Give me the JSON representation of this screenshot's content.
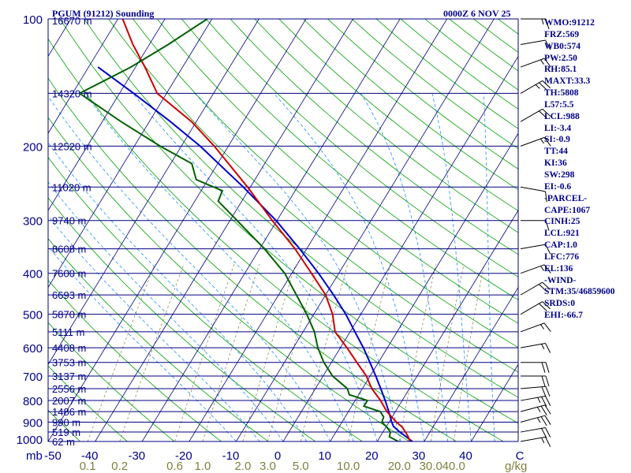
{
  "header": {
    "station": "PGUM (91212) Sounding",
    "datetime": "0000Z  6 NOV 25"
  },
  "chart_data": {
    "type": "skew-t",
    "pressure_axis": {
      "label": "mb",
      "ticks": [
        100,
        200,
        300,
        400,
        500,
        600,
        700,
        800,
        900,
        1000
      ],
      "range": [
        1000,
        100
      ],
      "scale": "log"
    },
    "temperature_axis": {
      "label": "C",
      "ticks": [
        -50,
        -40,
        -30,
        -20,
        -10,
        0,
        10,
        20,
        30,
        40
      ],
      "range": [
        -50,
        50
      ]
    },
    "mixing_ratio_axis": {
      "label": "g/kg",
      "ticks": [
        "0.1",
        "0.2",
        "0.6",
        "1.0",
        "2.0",
        "3.0",
        "5.0",
        "10.0",
        "20.0",
        "30.0",
        "40.0"
      ],
      "values": [
        0.1,
        0.2,
        0.6,
        1.0,
        2.0,
        3.0,
        5.0,
        10.0,
        20.0,
        30.0,
        40.0
      ]
    },
    "heights": [
      {
        "p": 100,
        "label": "16670 m"
      },
      {
        "p": 150,
        "label": "14320 m"
      },
      {
        "p": 200,
        "label": "12520 m"
      },
      {
        "p": 250,
        "label": "11020 m"
      },
      {
        "p": 300,
        "label": "9740 m"
      },
      {
        "p": 350,
        "label": "8608 m"
      },
      {
        "p": 400,
        "label": "7600 m"
      },
      {
        "p": 450,
        "label": "6693 m"
      },
      {
        "p": 500,
        "label": "5870 m"
      },
      {
        "p": 550,
        "label": "5111 m"
      },
      {
        "p": 600,
        "label": "4408 m"
      },
      {
        "p": 650,
        "label": "3753 m"
      },
      {
        "p": 700,
        "label": "3137 m"
      },
      {
        "p": 750,
        "label": "2556 m"
      },
      {
        "p": 800,
        "label": "2007 m"
      },
      {
        "p": 850,
        "label": "1486 m"
      },
      {
        "p": 900,
        "label": "990 m"
      },
      {
        "p": 950,
        "label": "519 m"
      },
      {
        "p": 1000,
        "label": "62 m"
      }
    ],
    "temperature": [
      {
        "p": 1000,
        "t": 27.0
      },
      {
        "p": 975,
        "t": 26.0
      },
      {
        "p": 950,
        "t": 24.8
      },
      {
        "p": 925,
        "t": 23.5
      },
      {
        "p": 900,
        "t": 21.6
      },
      {
        "p": 850,
        "t": 18.2
      },
      {
        "p": 800,
        "t": 15.4
      },
      {
        "p": 750,
        "t": 12.0
      },
      {
        "p": 700,
        "t": 9.2
      },
      {
        "p": 650,
        "t": 5.4
      },
      {
        "p": 600,
        "t": 1.4
      },
      {
        "p": 550,
        "t": -3.2
      },
      {
        "p": 500,
        "t": -6.0
      },
      {
        "p": 450,
        "t": -10.0
      },
      {
        "p": 400,
        "t": -15.8
      },
      {
        "p": 350,
        "t": -22.5
      },
      {
        "p": 300,
        "t": -31.0
      },
      {
        "p": 250,
        "t": -40.6
      },
      {
        "p": 200,
        "t": -53.0
      },
      {
        "p": 175,
        "t": -61.0
      },
      {
        "p": 150,
        "t": -72.0
      },
      {
        "p": 130,
        "t": -78.0
      },
      {
        "p": 115,
        "t": -83.5
      },
      {
        "p": 100,
        "t": -89.0
      }
    ],
    "dewpoint": [
      {
        "p": 1000,
        "t": 24.5
      },
      {
        "p": 975,
        "t": 22.0
      },
      {
        "p": 950,
        "t": 21.6
      },
      {
        "p": 925,
        "t": 20.2
      },
      {
        "p": 900,
        "t": 18.5
      },
      {
        "p": 875,
        "t": 18.2
      },
      {
        "p": 850,
        "t": 16.8
      },
      {
        "p": 825,
        "t": 12.6
      },
      {
        "p": 800,
        "t": 12.6
      },
      {
        "p": 775,
        "t": 8.0
      },
      {
        "p": 750,
        "t": 6.8
      },
      {
        "p": 700,
        "t": 2.0
      },
      {
        "p": 650,
        "t": -1.6
      },
      {
        "p": 600,
        "t": -4.8
      },
      {
        "p": 550,
        "t": -7.6
      },
      {
        "p": 500,
        "t": -11.5
      },
      {
        "p": 450,
        "t": -16.2
      },
      {
        "p": 400,
        "t": -21.5
      },
      {
        "p": 350,
        "t": -29.0
      },
      {
        "p": 300,
        "t": -38.5
      },
      {
        "p": 270,
        "t": -45.0
      },
      {
        "p": 255,
        "t": -45.5
      },
      {
        "p": 240,
        "t": -52.5
      },
      {
        "p": 220,
        "t": -55.5
      },
      {
        "p": 200,
        "t": -64.5
      },
      {
        "p": 175,
        "t": -76.0
      },
      {
        "p": 150,
        "t": -88.5
      },
      {
        "p": 130,
        "t": -81.0
      },
      {
        "p": 115,
        "t": -76.0
      },
      {
        "p": 100,
        "t": -71.0
      }
    ],
    "parcel": [
      {
        "p": 1000,
        "t": 27.5
      },
      {
        "p": 950,
        "t": 23.6
      },
      {
        "p": 921,
        "t": 21.5
      },
      {
        "p": 900,
        "t": 20.6
      },
      {
        "p": 850,
        "t": 18.6
      },
      {
        "p": 800,
        "t": 16.4
      },
      {
        "p": 750,
        "t": 13.9
      },
      {
        "p": 700,
        "t": 11.2
      },
      {
        "p": 650,
        "t": 8.2
      },
      {
        "p": 600,
        "t": 4.9
      },
      {
        "p": 550,
        "t": 1.0
      },
      {
        "p": 500,
        "t": -3.2
      },
      {
        "p": 450,
        "t": -8.3
      },
      {
        "p": 400,
        "t": -14.3
      },
      {
        "p": 350,
        "t": -21.5
      },
      {
        "p": 300,
        "t": -30.2
      },
      {
        "p": 250,
        "t": -41.5
      },
      {
        "p": 200,
        "t": -56.0
      },
      {
        "p": 175,
        "t": -65.5
      },
      {
        "p": 150,
        "t": -77.0
      },
      {
        "p": 130,
        "t": -88.0
      }
    ],
    "wind_barbs": [
      {
        "p": 1000,
        "dir": 80,
        "spd": 15
      },
      {
        "p": 950,
        "dir": 80,
        "spd": 20
      },
      {
        "p": 900,
        "dir": 75,
        "spd": 25
      },
      {
        "p": 850,
        "dir": 75,
        "spd": 25
      },
      {
        "p": 800,
        "dir": 80,
        "spd": 25
      },
      {
        "p": 750,
        "dir": 85,
        "spd": 20
      },
      {
        "p": 700,
        "dir": 90,
        "spd": 20
      },
      {
        "p": 650,
        "dir": 90,
        "spd": 20
      },
      {
        "p": 600,
        "dir": 80,
        "spd": 15
      },
      {
        "p": 550,
        "dir": 70,
        "spd": 15
      },
      {
        "p": 500,
        "dir": 60,
        "spd": 20
      },
      {
        "p": 450,
        "dir": 60,
        "spd": 20
      },
      {
        "p": 400,
        "dir": 70,
        "spd": 15
      },
      {
        "p": 350,
        "dir": 80,
        "spd": 10
      },
      {
        "p": 300,
        "dir": 90,
        "spd": 10
      },
      {
        "p": 250,
        "dir": 100,
        "spd": 10
      },
      {
        "p": 200,
        "dir": 70,
        "spd": 15
      },
      {
        "p": 175,
        "dir": 60,
        "spd": 20
      },
      {
        "p": 150,
        "dir": 60,
        "spd": 25
      },
      {
        "p": 130,
        "dir": 70,
        "spd": 15
      },
      {
        "p": 115,
        "dir": 80,
        "spd": 10
      },
      {
        "p": 100,
        "dir": 90,
        "spd": 15
      }
    ],
    "colors": {
      "frame": "#000080",
      "isobar": "#000080",
      "isotherm": "#000080",
      "dry_adiabat": "#00a000",
      "moist_adiabat": "#0080ff",
      "mixing_ratio": "#808040",
      "temperature": "#cc0000",
      "dewpoint": "#006000",
      "parcel": "#0000cc",
      "text": "#00008b",
      "mixing_ratio_text": "#808040",
      "wind_barb": "#000000"
    }
  },
  "indices": [
    "WMO:91212",
    "FRZ:569",
    "WB0:574",
    "PW:2.50",
    "RH:85.1",
    "MAXT:33.3",
    "TH:5808",
    "L57:5.5",
    "LCL:988",
    "LI:-3.4",
    "SI:-0.9",
    "TT:44",
    "KI:36",
    "SW:298",
    "EI:-0.6",
    "-PARCEL-",
    "CAPE:1067",
    "CINH:25",
    "LCL:921",
    "CAP:1.0",
    "LFC:776",
    "EL:136",
    "-WIND-",
    "STM:35/46859600",
    "SRDS:0",
    "EHI:-66.7"
  ]
}
